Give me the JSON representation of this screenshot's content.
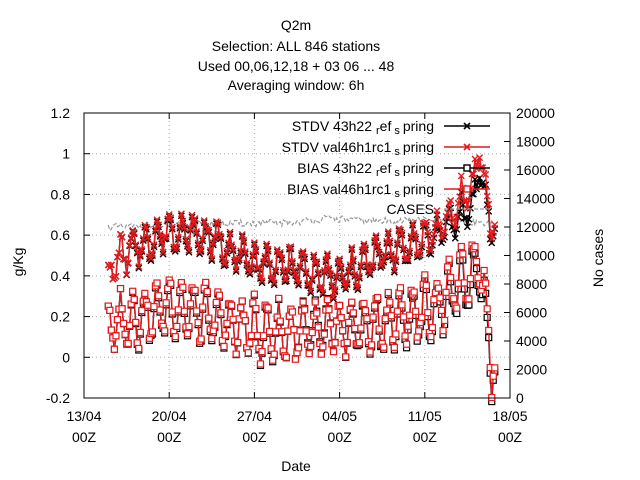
{
  "chart_data": {
    "type": "line",
    "title_lines": [
      "Q2m",
      "Selection: ALL    846 stations",
      "Used  00,06,12,18  + 03 06 ... 48",
      "Averaging window:  6h"
    ],
    "xlabel": "Date",
    "ylabel": "g/Kg",
    "y2label": "No cases",
    "ylim": [
      -0.2,
      1.2
    ],
    "y2lim": [
      0,
      20000
    ],
    "y_ticks": [
      "-0.2",
      "0",
      "0.2",
      "0.4",
      "0.6",
      "0.8",
      "1",
      "1.2"
    ],
    "y2_ticks": [
      "0",
      "2000",
      "4000",
      "6000",
      "8000",
      "10000",
      "12000",
      "14000",
      "16000",
      "18000",
      "20000"
    ],
    "x_ticks": [
      {
        "date": "13/04",
        "hour": "00Z"
      },
      {
        "date": "20/04",
        "hour": "00Z"
      },
      {
        "date": "27/04",
        "hour": "00Z"
      },
      {
        "date": "04/05",
        "hour": "00Z"
      },
      {
        "date": "11/05",
        "hour": "00Z"
      },
      {
        "date": "18/05",
        "hour": "00Z"
      }
    ],
    "x_range_days": [
      0,
      35
    ],
    "grid": true,
    "legend_position": "top-right",
    "series": [
      {
        "name": "STDV 43h22_{r}ef_{s}pring",
        "label_main": "STDV 43h22",
        "label_sub": "ref",
        "label_tail": "spring",
        "axis": "y",
        "color": "#000000",
        "marker": "x",
        "kind": "stdv",
        "anchors": [
          [
            2.0,
            0.4
          ],
          [
            3.0,
            0.5
          ],
          [
            5.0,
            0.55
          ],
          [
            7.0,
            0.62
          ],
          [
            9.0,
            0.6
          ],
          [
            11.0,
            0.57
          ],
          [
            13.0,
            0.48
          ],
          [
            15.0,
            0.45
          ],
          [
            17.0,
            0.44
          ],
          [
            19.0,
            0.4
          ],
          [
            21.0,
            0.38
          ],
          [
            23.0,
            0.45
          ],
          [
            25.0,
            0.52
          ],
          [
            27.0,
            0.55
          ],
          [
            29.0,
            0.6
          ],
          [
            30.0,
            0.65
          ],
          [
            31.0,
            0.7
          ],
          [
            32.0,
            0.75
          ],
          [
            32.5,
            0.95
          ],
          [
            33.0,
            0.75
          ],
          [
            33.5,
            0.62
          ]
        ]
      },
      {
        "name": "STDV val46h1rc1_{s}pring",
        "label_main": "STDV val46h1rc1",
        "label_sub": "",
        "label_tail": "spring",
        "axis": "y",
        "color": "#e41a1c",
        "marker": "x",
        "kind": "stdv",
        "anchors": [
          [
            2.0,
            0.4
          ],
          [
            3.0,
            0.5
          ],
          [
            5.0,
            0.56
          ],
          [
            7.0,
            0.63
          ],
          [
            9.0,
            0.61
          ],
          [
            11.0,
            0.58
          ],
          [
            13.0,
            0.49
          ],
          [
            15.0,
            0.46
          ],
          [
            17.0,
            0.45
          ],
          [
            19.0,
            0.41
          ],
          [
            21.0,
            0.39
          ],
          [
            23.0,
            0.46
          ],
          [
            25.0,
            0.53
          ],
          [
            27.0,
            0.56
          ],
          [
            29.0,
            0.62
          ],
          [
            30.0,
            0.68
          ],
          [
            31.0,
            0.78
          ],
          [
            32.0,
            0.85
          ],
          [
            32.5,
            1.05
          ],
          [
            33.0,
            0.8
          ],
          [
            33.5,
            0.64
          ]
        ]
      },
      {
        "name": "BIAS 43h22_{r}ef_{s}pring",
        "label_main": "BIAS 43h22",
        "label_sub": "ref",
        "label_tail": "spring",
        "axis": "y",
        "color": "#000000",
        "marker": "sq",
        "kind": "bias",
        "anchors": [
          [
            2.0,
            0.14
          ],
          [
            3.0,
            0.18
          ],
          [
            5.0,
            0.2
          ],
          [
            7.0,
            0.25
          ],
          [
            9.0,
            0.22
          ],
          [
            11.0,
            0.18
          ],
          [
            13.0,
            0.15
          ],
          [
            15.0,
            0.12
          ],
          [
            17.0,
            0.12
          ],
          [
            19.0,
            0.13
          ],
          [
            21.0,
            0.14
          ],
          [
            23.0,
            0.15
          ],
          [
            25.0,
            0.17
          ],
          [
            27.0,
            0.2
          ],
          [
            29.0,
            0.24
          ],
          [
            30.0,
            0.3
          ],
          [
            31.0,
            0.35
          ],
          [
            32.0,
            0.4
          ],
          [
            32.5,
            0.48
          ],
          [
            33.0,
            0.2
          ],
          [
            33.5,
            -0.05
          ]
        ]
      },
      {
        "name": "BIAS val46h1rc1_{s}pring",
        "label_main": "BIAS val46h1rc1",
        "label_sub": "",
        "label_tail": "spring",
        "axis": "y",
        "color": "#e41a1c",
        "marker": "sq",
        "kind": "bias",
        "anchors": [
          [
            2.0,
            0.14
          ],
          [
            3.0,
            0.18
          ],
          [
            5.0,
            0.21
          ],
          [
            7.0,
            0.26
          ],
          [
            9.0,
            0.23
          ],
          [
            11.0,
            0.19
          ],
          [
            13.0,
            0.15
          ],
          [
            15.0,
            0.13
          ],
          [
            17.0,
            0.12
          ],
          [
            19.0,
            0.12
          ],
          [
            21.0,
            0.14
          ],
          [
            23.0,
            0.16
          ],
          [
            25.0,
            0.18
          ],
          [
            27.0,
            0.22
          ],
          [
            29.0,
            0.26
          ],
          [
            30.0,
            0.32
          ],
          [
            31.0,
            0.38
          ],
          [
            32.0,
            0.43
          ],
          [
            32.5,
            0.52
          ],
          [
            33.0,
            0.25
          ],
          [
            33.5,
            -0.03
          ]
        ]
      },
      {
        "name": "CASES",
        "label_main": "CASES",
        "label_sub": "",
        "label_tail": "",
        "axis": "y2",
        "color": "#999999",
        "marker": "none",
        "kind": "cases",
        "anchors": [
          [
            3.0,
            12000
          ],
          [
            10.0,
            12200
          ],
          [
            17.0,
            12300
          ],
          [
            20.0,
            12600
          ],
          [
            24.0,
            12400
          ],
          [
            28.0,
            12500
          ],
          [
            33.0,
            12300
          ]
        ]
      }
    ]
  }
}
